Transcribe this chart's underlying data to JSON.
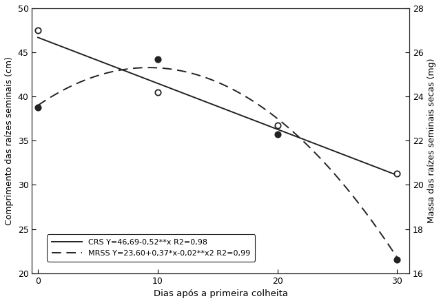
{
  "xlabel": "Dias após a primeira colheita",
  "ylabel_left": "Comprimento das raízes seminais (cm)",
  "ylabel_right": "Massa das raízes seminais secas (mg)",
  "x_ticks": [
    0,
    10,
    20,
    30
  ],
  "ylim_left": [
    20,
    50
  ],
  "ylim_right": [
    16,
    28
  ],
  "yticks_left": [
    20,
    25,
    30,
    35,
    40,
    45,
    50
  ],
  "yticks_right": [
    16,
    18,
    20,
    22,
    24,
    26,
    28
  ],
  "crs_points_x": [
    0,
    10,
    20,
    30
  ],
  "crs_points_y": [
    47.5,
    40.5,
    36.7,
    31.3
  ],
  "mrss_points_x": [
    0,
    10,
    20,
    30
  ],
  "mrss_points_mg": [
    23.5,
    25.7,
    22.3,
    16.6
  ],
  "crs_coef": [
    46.69,
    -0.52
  ],
  "mrss_coef": [
    23.6,
    0.37,
    -0.02
  ],
  "legend_label_crs": "CRS Y=46,69-0,52**x R2=0,98",
  "legend_label_mrss": "MRSS Y=23,60+0,37*x-0,02**x2 R2=0,99",
  "line_color": "#222222",
  "bg_color": "#ffffff",
  "fontsize": 9.5
}
